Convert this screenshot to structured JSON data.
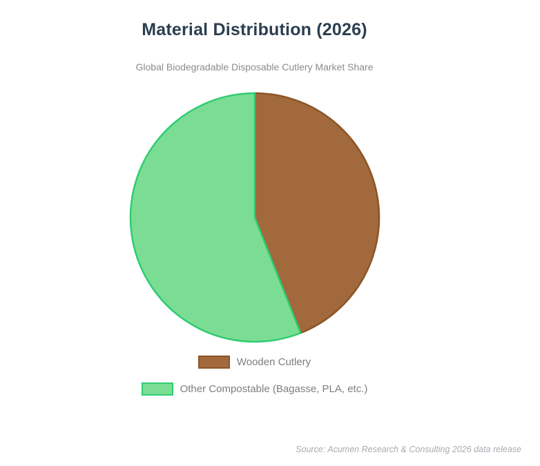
{
  "page": {
    "background": "#ffffff"
  },
  "header": {
    "title": "Material Distribution (2026)",
    "subtitle": "Global Biodegradable Disposable Cutlery Market Share",
    "title_color": "#2c3e50",
    "subtitle_color": "#8b8b8b"
  },
  "chart_data": {
    "type": "pie",
    "title": "Material Distribution (2026)",
    "subtitle": "Global Biodegradable Disposable Cutlery Market Share",
    "start_angle_deg": 0,
    "direction": "clockwise",
    "legend_position": "bottom",
    "data_labels": false,
    "slices": [
      {
        "label": "Wooden Cutlery",
        "value": 44,
        "color": "#a1693c",
        "border_color": "#8a5527"
      },
      {
        "label": "Other Compostable (Bagasse, PLA, etc.)",
        "value": 56,
        "color": "#7bdd94",
        "border_color": "#2ecc71"
      }
    ]
  },
  "legend": {
    "text_color": "#7d7d7d"
  },
  "footer": {
    "source": "Source: Acumen Research & Consulting 2026 data release",
    "source_color": "#a6abb1"
  }
}
